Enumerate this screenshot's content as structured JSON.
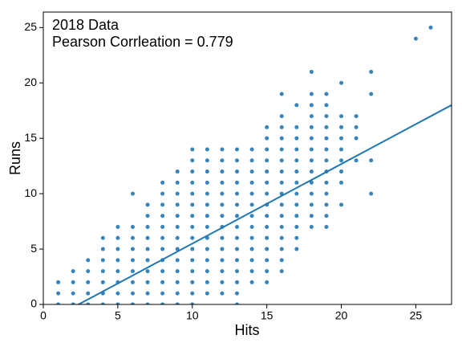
{
  "chart_data": {
    "type": "scatter",
    "annotations": [
      "2018 Data",
      "Pearson Corrleation = 0.779"
    ],
    "x_label": "Hits",
    "y_label": "Runs",
    "xlim": [
      0,
      27.4
    ],
    "ylim": [
      0,
      26.4
    ],
    "xticks": [
      0,
      5,
      10,
      15,
      20,
      25
    ],
    "yticks": [
      0,
      5,
      10,
      15,
      20,
      25
    ],
    "series": [
      {
        "type": "scatter",
        "color": "#1f77b4",
        "x": [
          1,
          1,
          1,
          2,
          2,
          2,
          2,
          3,
          3,
          3,
          3,
          3,
          4,
          4,
          4,
          4,
          4,
          4,
          4,
          5,
          5,
          5,
          5,
          5,
          5,
          5,
          5,
          6,
          6,
          6,
          6,
          6,
          6,
          6,
          6,
          6,
          7,
          7,
          7,
          7,
          7,
          7,
          7,
          7,
          7,
          7,
          8,
          8,
          8,
          8,
          8,
          8,
          8,
          8,
          8,
          8,
          8,
          8,
          9,
          9,
          9,
          9,
          9,
          9,
          9,
          9,
          9,
          9,
          9,
          9,
          9,
          10,
          10,
          10,
          10,
          10,
          10,
          10,
          10,
          10,
          10,
          10,
          10,
          10,
          10,
          10,
          11,
          11,
          11,
          11,
          11,
          11,
          11,
          11,
          11,
          11,
          11,
          11,
          11,
          11,
          12,
          12,
          12,
          12,
          12,
          12,
          12,
          12,
          12,
          12,
          12,
          12,
          12,
          12,
          13,
          13,
          13,
          13,
          13,
          13,
          13,
          13,
          13,
          13,
          13,
          13,
          13,
          13,
          13,
          14,
          14,
          14,
          14,
          14,
          14,
          14,
          14,
          14,
          14,
          14,
          14,
          14,
          15,
          15,
          15,
          15,
          15,
          15,
          15,
          15,
          15,
          15,
          15,
          15,
          15,
          15,
          15,
          16,
          16,
          16,
          16,
          16,
          16,
          16,
          16,
          16,
          16,
          16,
          16,
          16,
          16,
          16,
          16,
          17,
          17,
          17,
          17,
          17,
          17,
          17,
          17,
          17,
          17,
          17,
          17,
          17,
          18,
          18,
          18,
          18,
          18,
          18,
          18,
          18,
          18,
          18,
          18,
          18,
          18,
          18,
          19,
          19,
          19,
          19,
          19,
          19,
          19,
          19,
          19,
          19,
          19,
          19,
          19,
          20,
          20,
          20,
          20,
          20,
          20,
          20,
          20,
          20,
          21,
          21,
          21,
          21,
          22,
          22,
          22,
          22,
          25,
          26
        ],
        "values": [
          0,
          1,
          2,
          0,
          1,
          2,
          3,
          0,
          1,
          2,
          3,
          4,
          0,
          1,
          2,
          3,
          4,
          5,
          6,
          0,
          1,
          2,
          3,
          4,
          5,
          6,
          7,
          0,
          1,
          2,
          3,
          4,
          5,
          6,
          7,
          10,
          0,
          1,
          2,
          3,
          4,
          5,
          6,
          7,
          8,
          9,
          0,
          1,
          2,
          3,
          4,
          5,
          6,
          7,
          8,
          9,
          10,
          11,
          0,
          1,
          2,
          3,
          4,
          5,
          6,
          7,
          8,
          9,
          10,
          11,
          12,
          0,
          1,
          2,
          3,
          4,
          5,
          6,
          7,
          8,
          9,
          10,
          11,
          12,
          13,
          14,
          1,
          2,
          3,
          4,
          5,
          6,
          7,
          8,
          9,
          10,
          11,
          12,
          13,
          14,
          1,
          2,
          3,
          4,
          5,
          6,
          7,
          8,
          9,
          10,
          11,
          12,
          13,
          14,
          0,
          1,
          2,
          3,
          4,
          5,
          6,
          7,
          8,
          9,
          10,
          11,
          12,
          13,
          14,
          2,
          3,
          4,
          5,
          6,
          7,
          8,
          9,
          10,
          11,
          12,
          13,
          14,
          2,
          3,
          4,
          5,
          6,
          7,
          8,
          9,
          10,
          11,
          12,
          13,
          14,
          15,
          16,
          3,
          4,
          5,
          6,
          7,
          8,
          9,
          10,
          11,
          12,
          13,
          14,
          15,
          16,
          17,
          19,
          5,
          6,
          7,
          8,
          9,
          10,
          11,
          12,
          13,
          14,
          15,
          16,
          18,
          7,
          8,
          9,
          10,
          11,
          12,
          13,
          14,
          15,
          16,
          17,
          18,
          19,
          21,
          7,
          8,
          9,
          10,
          11,
          12,
          13,
          14,
          15,
          16,
          17,
          18,
          19,
          9,
          11,
          12,
          13,
          14,
          15,
          16,
          17,
          20,
          13,
          15,
          16,
          17,
          10,
          13,
          19,
          21,
          24,
          25
        ]
      },
      {
        "type": "line",
        "color": "#1f77b4",
        "x": [
          0,
          27.4
        ],
        "values": [
          -1.7,
          18.0
        ]
      }
    ]
  }
}
